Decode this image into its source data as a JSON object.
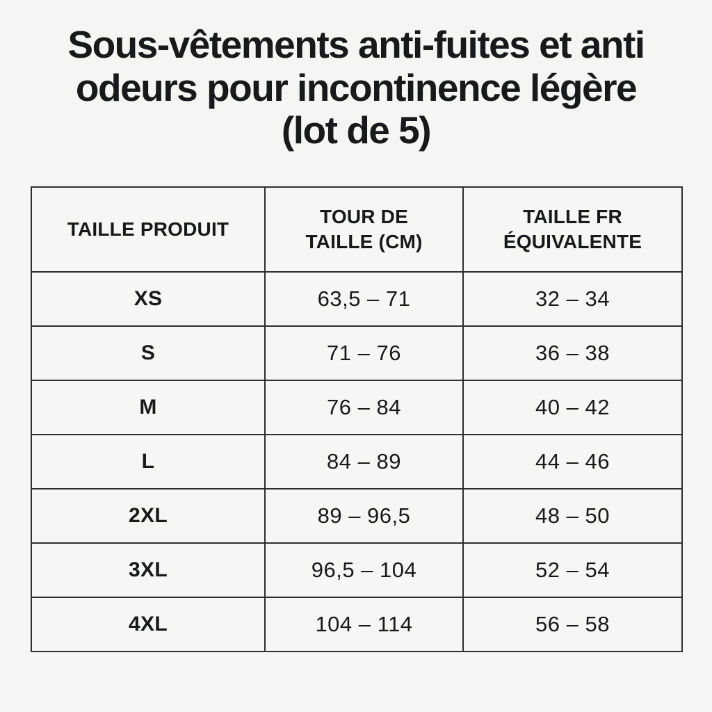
{
  "page": {
    "background_color": "#f5f5f3",
    "text_color": "#17191b",
    "border_color": "#2e2e2e"
  },
  "title_lines": [
    "Sous-vêtements anti-fuites et anti",
    "odeurs pour incontinence légère",
    "(lot de 5)"
  ],
  "chart_data": {
    "type": "table",
    "title": "Sous-vêtements anti-fuites et anti odeurs pour incontinence légère (lot de 5)",
    "columns": [
      "TAILLE PRODUIT",
      "TOUR DE TAILLE (CM)",
      "TAILLE FR ÉQUIVALENTE"
    ],
    "rows": [
      {
        "size": "XS",
        "waist_cm": "63,5 – 71",
        "fr_size": "32 – 34"
      },
      {
        "size": "S",
        "waist_cm": "71 – 76",
        "fr_size": "36 – 38"
      },
      {
        "size": "M",
        "waist_cm": "76 – 84",
        "fr_size": "40 – 42"
      },
      {
        "size": "L",
        "waist_cm": "84 – 89",
        "fr_size": "44 – 46"
      },
      {
        "size": "2XL",
        "waist_cm": "89 – 96,5",
        "fr_size": "48 – 50"
      },
      {
        "size": "3XL",
        "waist_cm": "96,5 – 104",
        "fr_size": "52 – 54"
      },
      {
        "size": "4XL",
        "waist_cm": "104 – 114",
        "fr_size": "56 – 58"
      }
    ]
  }
}
